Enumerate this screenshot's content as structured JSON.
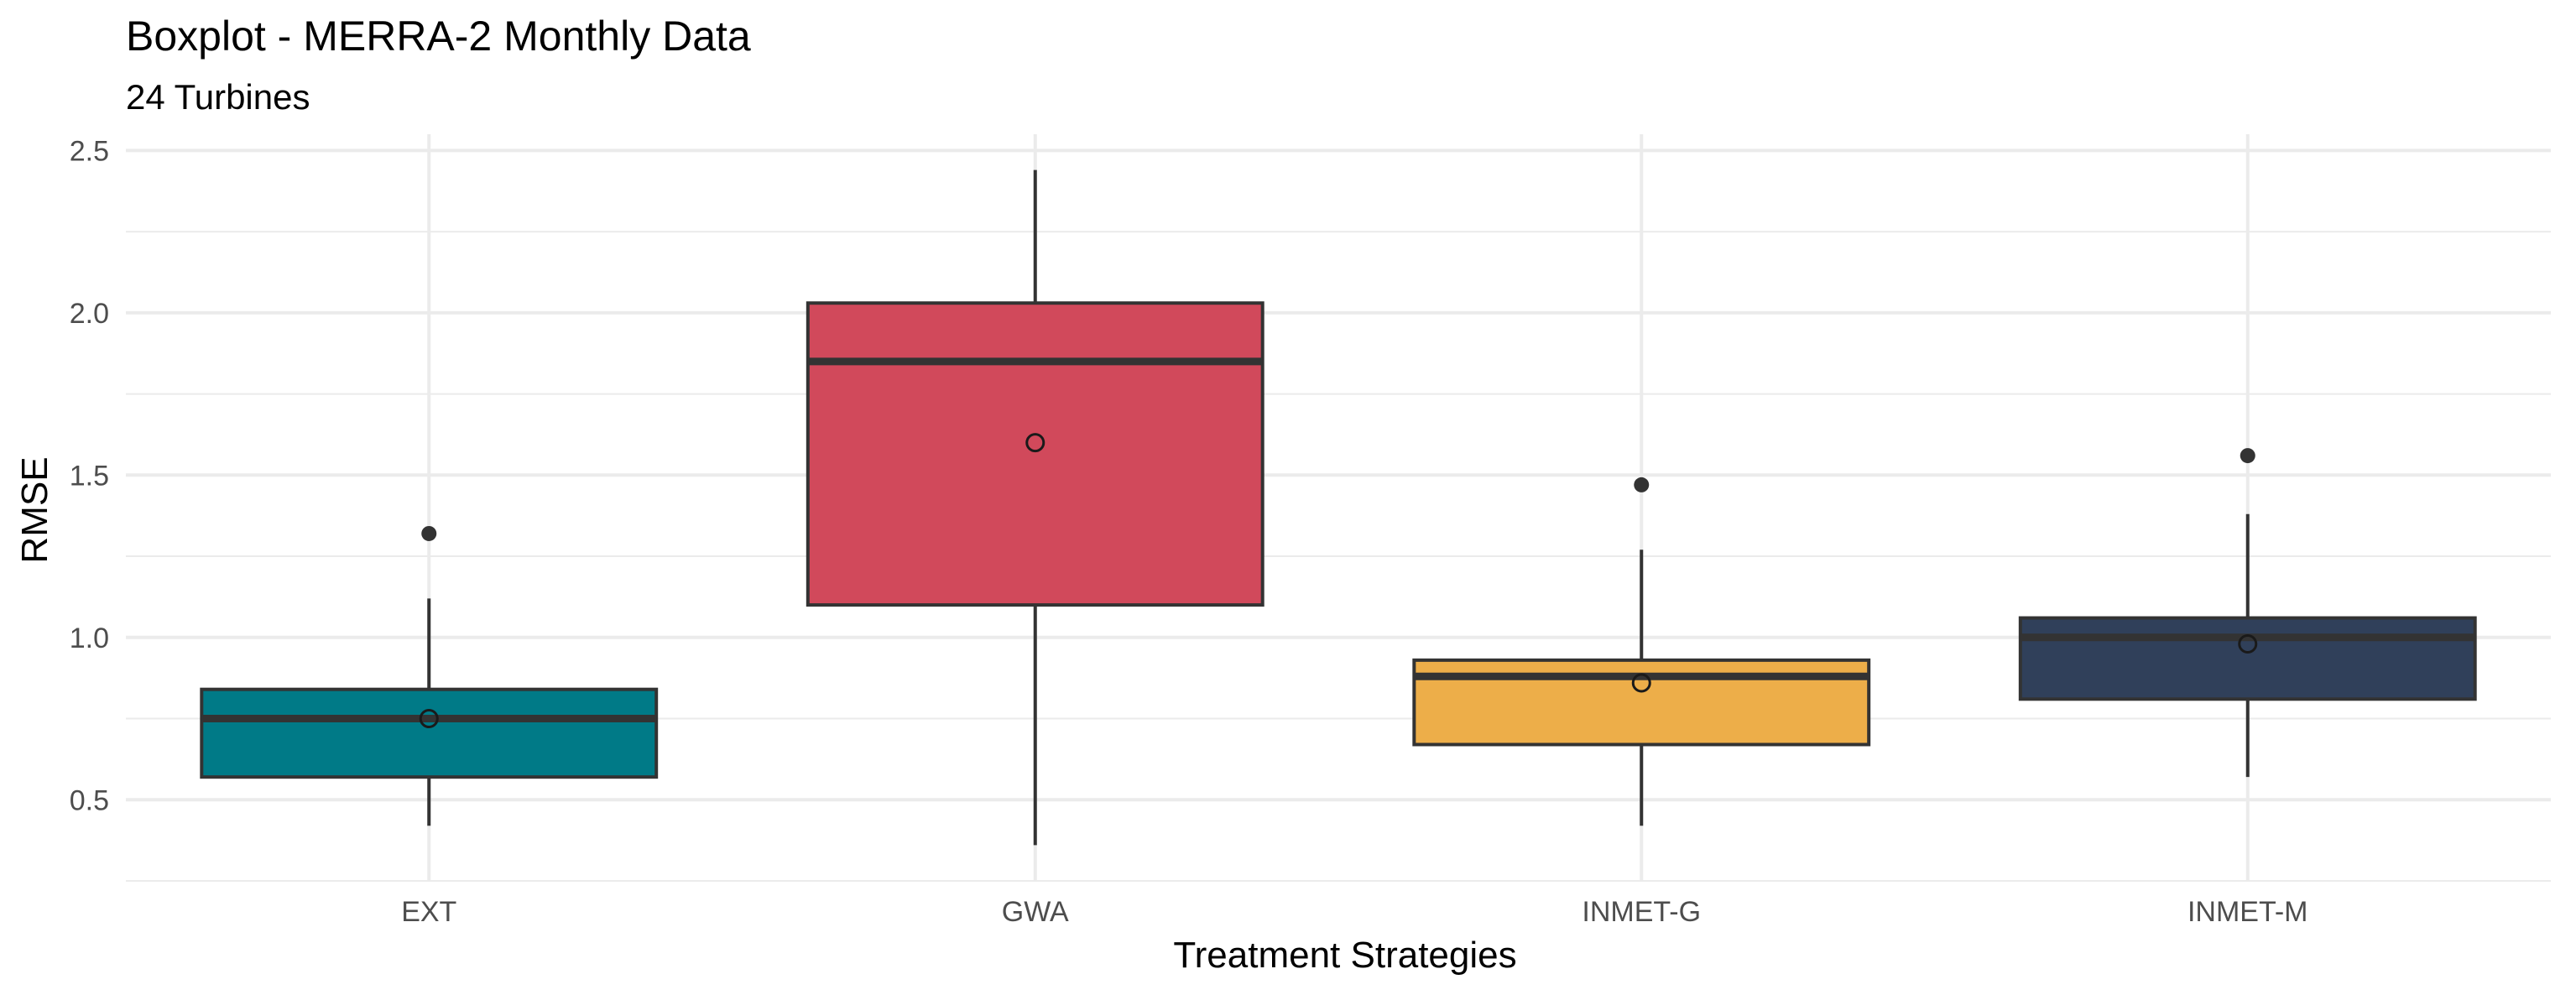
{
  "chart_data": {
    "type": "boxplot",
    "title": "Boxplot - MERRA-2 Monthly Data",
    "subtitle": "24 Turbines",
    "xlabel": "Treatment Strategies",
    "ylabel": "RMSE",
    "ylim": [
      0.25,
      2.55
    ],
    "yticks": [
      "0.5",
      "1.0",
      "1.5",
      "2.0",
      "2.5"
    ],
    "ytick_values": [
      0.5,
      1.0,
      1.5,
      2.0,
      2.5
    ],
    "grid": true,
    "legend": "none",
    "categories": [
      "EXT",
      "GWA",
      "INMET-G",
      "INMET-M"
    ],
    "boxes": [
      {
        "category": "EXT",
        "lower_whisker": 0.42,
        "q1": 0.57,
        "median": 0.75,
        "q3": 0.84,
        "upper_whisker": 1.12,
        "mean": 0.75,
        "outliers": [
          1.32
        ],
        "color": "#007A87"
      },
      {
        "category": "GWA",
        "lower_whisker": 0.36,
        "q1": 1.1,
        "median": 1.85,
        "q3": 2.03,
        "upper_whisker": 2.44,
        "mean": 1.6,
        "outliers": [],
        "color": "#D1495B"
      },
      {
        "category": "INMET-G",
        "lower_whisker": 0.42,
        "q1": 0.67,
        "median": 0.88,
        "q3": 0.93,
        "upper_whisker": 1.27,
        "mean": 0.86,
        "outliers": [
          1.47
        ],
        "color": "#EDAE49"
      },
      {
        "category": "INMET-M",
        "lower_whisker": 0.57,
        "q1": 0.81,
        "median": 1.0,
        "q3": 1.06,
        "upper_whisker": 1.38,
        "mean": 0.98,
        "outliers": [
          1.56
        ],
        "color": "#30405A"
      }
    ],
    "styles": {
      "grid_color": "#ebebeb",
      "outline_color": "#333333"
    }
  }
}
